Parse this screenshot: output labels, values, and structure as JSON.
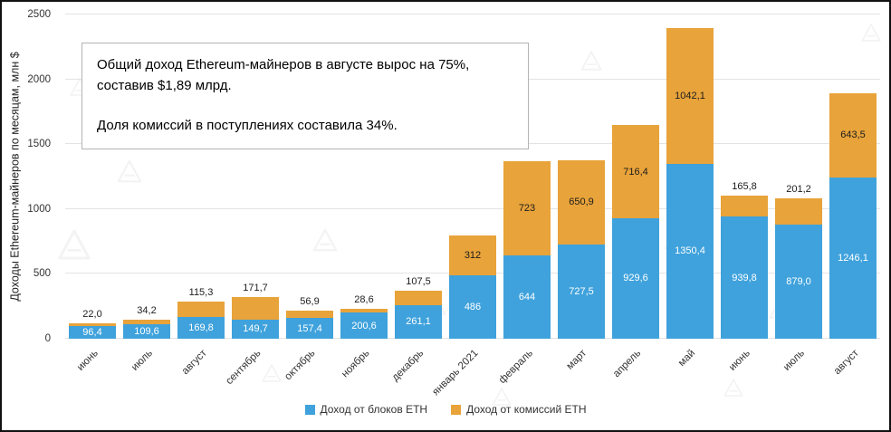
{
  "annotation": {
    "line1": "Общий доход Ethereum-майнеров в августе вырос на 75%, составив $1,89 млрд.",
    "line2": "Доля комиссий в поступлениях составила 34%."
  },
  "icons": {
    "watermark": "triangle-a-logo"
  },
  "chart_data": {
    "type": "bar",
    "stacked": true,
    "title": "",
    "ylabel": "Доходы Ethereum-майнеров по месяцам, млн $",
    "xlabel": "",
    "ylim": [
      0,
      2500
    ],
    "yticks": [
      0,
      500,
      1000,
      1500,
      2000,
      2500
    ],
    "grid": true,
    "legend_position": "bottom",
    "categories": [
      "июнь",
      "июль",
      "август",
      "сентябрь",
      "октябрь",
      "ноябрь",
      "декабрь",
      "январь 2021",
      "февраль",
      "март",
      "апрель",
      "май",
      "июнь",
      "июль",
      "август"
    ],
    "series": [
      {
        "name": "Доход от блоков ETH",
        "color": "#3FA2DC",
        "values": [
          96.4,
          109.6,
          169.8,
          149.7,
          157.4,
          200.6,
          261.1,
          486,
          644,
          727.5,
          929.6,
          1350.4,
          939.8,
          879.0,
          1246.1
        ],
        "labels": [
          "96,4",
          "109,6",
          "169,8",
          "149,7",
          "157,4",
          "200,6",
          "261,1",
          "486",
          "644",
          "727,5",
          "929,6",
          "1350,4",
          "939,8",
          "879,0",
          "1246,1"
        ]
      },
      {
        "name": "Доход от комиссий ETH",
        "color": "#E8A33A",
        "values": [
          22.0,
          34.2,
          115.3,
          171.7,
          56.9,
          28.6,
          107.5,
          312,
          723,
          650.9,
          716.4,
          1042.1,
          165.8,
          201.2,
          643.5
        ],
        "labels": [
          "22,0",
          "34,2",
          "115,3",
          "171,7",
          "56,9",
          "28,6",
          "107,5",
          "312",
          "723",
          "650,9",
          "716,4",
          "1042,1",
          "165,8",
          "201,2",
          "643,5"
        ]
      }
    ]
  }
}
